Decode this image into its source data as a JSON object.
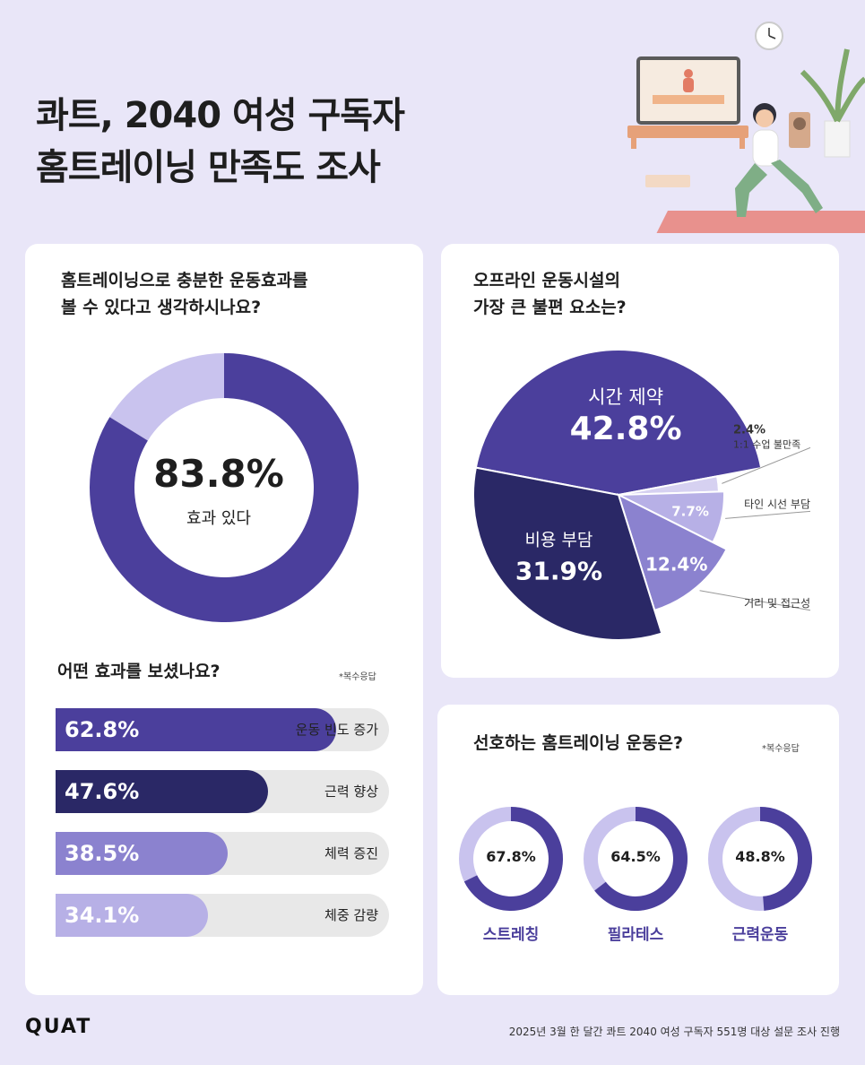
{
  "title": {
    "line1": "콰트, 2040 여성 구독자",
    "line2": "홈트레이닝 만족도 조사"
  },
  "colors": {
    "primary": "#4b3f9c",
    "dark": "#2a2866",
    "mid": "#8b82cf",
    "light": "#b7b0e6",
    "pale": "#d6d1f1",
    "track": "#e8e8e8",
    "background": "#e9e6f8"
  },
  "effect_card": {
    "question_line1": "홈트레이닝으로 충분한 운동효과를",
    "question_line2": "볼 수 있다고 생각하시나요?",
    "center_value": "83.8%",
    "center_label": "효과 있다"
  },
  "benefit_section": {
    "question": "어떤 효과를 보셨나요?",
    "note": "*복수응답"
  },
  "offline_card": {
    "question_line1": "오프라인 운동시설의",
    "question_line2": "가장 큰 불편 요소는?"
  },
  "pref_card": {
    "question": "선호하는 홈트레이닝 운동은?",
    "note": "*복수응답"
  },
  "footer": {
    "logo": "QUAT",
    "source": "2025년 3월 한 달간 콰트 2040 여성 구독자 551명 대상 설문 조사 진행"
  },
  "chart_data": [
    {
      "type": "pie",
      "id": "effect-donut",
      "categories": [
        "효과 있다",
        ""
      ],
      "values": [
        83.8,
        16.2
      ],
      "colors": [
        "#4b3f9c",
        "#c9c3ee"
      ]
    },
    {
      "type": "bar",
      "id": "benefit-bars",
      "categories": [
        "운동 빈도 증가",
        "근력 향상",
        "체력 증진",
        "체중 감량"
      ],
      "values": [
        62.8,
        47.6,
        38.5,
        34.1
      ],
      "labels": [
        "62.8%",
        "47.6%",
        "38.5%",
        "34.1%"
      ],
      "colors": [
        "#4b3f9c",
        "#2a2866",
        "#8b82cf",
        "#b7b0e6"
      ],
      "xlim": [
        0,
        100
      ]
    },
    {
      "type": "pie",
      "id": "offline-pie",
      "categories": [
        "시간 제약",
        "비용 부담",
        "거리 및 접근성",
        "타인 시선 부담",
        "1:1 수업 불만족"
      ],
      "values": [
        42.8,
        31.9,
        12.4,
        7.7,
        2.4
      ],
      "labels": [
        "42.8%",
        "31.9%",
        "12.4%",
        "7.7%",
        "2.4%"
      ],
      "colors": [
        "#4b3f9c",
        "#2a2866",
        "#8b82cf",
        "#b7b0e6",
        "#d6d1f1"
      ]
    },
    {
      "type": "pie",
      "id": "pref-donuts",
      "categories": [
        "스트레칭",
        "필라테스",
        "근력운동"
      ],
      "values": [
        67.8,
        64.5,
        48.8
      ],
      "labels": [
        "67.8%",
        "64.5%",
        "48.8%"
      ],
      "colors": [
        "#4b3f9c",
        "#c9c3ee"
      ]
    }
  ]
}
